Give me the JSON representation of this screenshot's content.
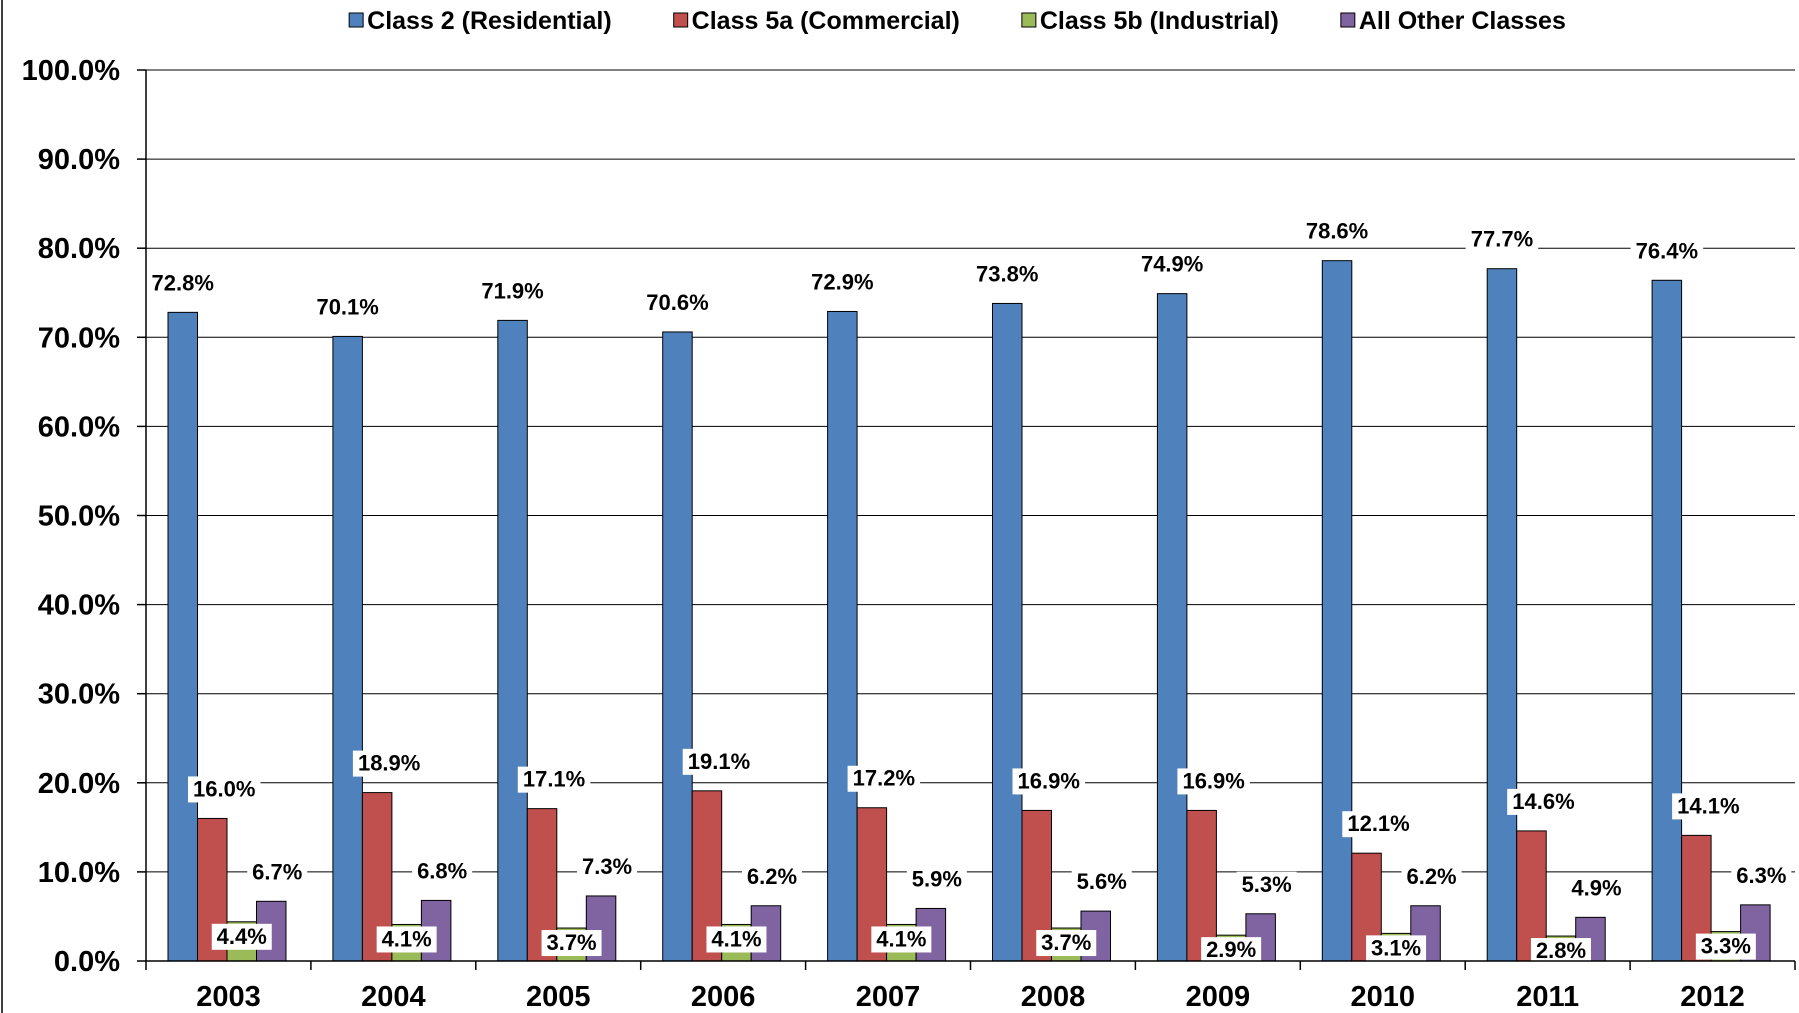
{
  "chart_data": {
    "type": "bar",
    "categories": [
      "2003",
      "2004",
      "2005",
      "2006",
      "2007",
      "2008",
      "2009",
      "2010",
      "2011",
      "2012"
    ],
    "series": [
      {
        "name": "Class 2 (Residential)",
        "color": "#4F81BD",
        "values": [
          72.8,
          70.1,
          71.9,
          70.6,
          72.9,
          73.8,
          74.9,
          78.6,
          77.7,
          76.4
        ],
        "labels": [
          "72.8%",
          "70.1%",
          "71.9%",
          "70.6%",
          "72.9%",
          "73.8%",
          "74.9%",
          "78.6%",
          "77.7%",
          "76.4%"
        ]
      },
      {
        "name": "Class 5a (Commercial)",
        "color": "#C0504D",
        "values": [
          16.0,
          18.9,
          17.1,
          19.1,
          17.2,
          16.9,
          16.9,
          12.1,
          14.6,
          14.1
        ],
        "labels": [
          "16.0%",
          "18.9%",
          "17.1%",
          "19.1%",
          "17.2%",
          "16.9%",
          "16.9%",
          "12.1%",
          "14.6%",
          "14.1%"
        ]
      },
      {
        "name": "Class 5b (Industrial)",
        "color": "#9BBB59",
        "values": [
          4.4,
          4.1,
          3.7,
          4.1,
          4.1,
          3.7,
          2.9,
          3.1,
          2.8,
          3.3
        ],
        "labels": [
          "4.4%",
          "4.1%",
          "3.7%",
          "4.1%",
          "4.1%",
          "3.7%",
          "2.9%",
          "3.1%",
          "2.8%",
          "3.3%"
        ]
      },
      {
        "name": "All Other Classes",
        "color": "#8064A2",
        "values": [
          6.7,
          6.8,
          7.3,
          6.2,
          5.9,
          5.6,
          5.3,
          6.2,
          4.9,
          6.3
        ],
        "labels": [
          "6.7%",
          "6.8%",
          "7.3%",
          "6.2%",
          "5.9%",
          "5.6%",
          "5.3%",
          "6.2%",
          "4.9%",
          "6.3%"
        ]
      }
    ],
    "ylim": [
      0,
      100
    ],
    "yticks": [
      0,
      10,
      20,
      30,
      40,
      50,
      60,
      70,
      80,
      90,
      100
    ],
    "ytick_labels": [
      "0.0%",
      "10.0%",
      "20.0%",
      "30.0%",
      "40.0%",
      "50.0%",
      "60.0%",
      "70.0%",
      "80.0%",
      "90.0%",
      "100.0%"
    ],
    "title": "",
    "xlabel": "",
    "ylabel": "",
    "grid": true,
    "legend": "top"
  }
}
